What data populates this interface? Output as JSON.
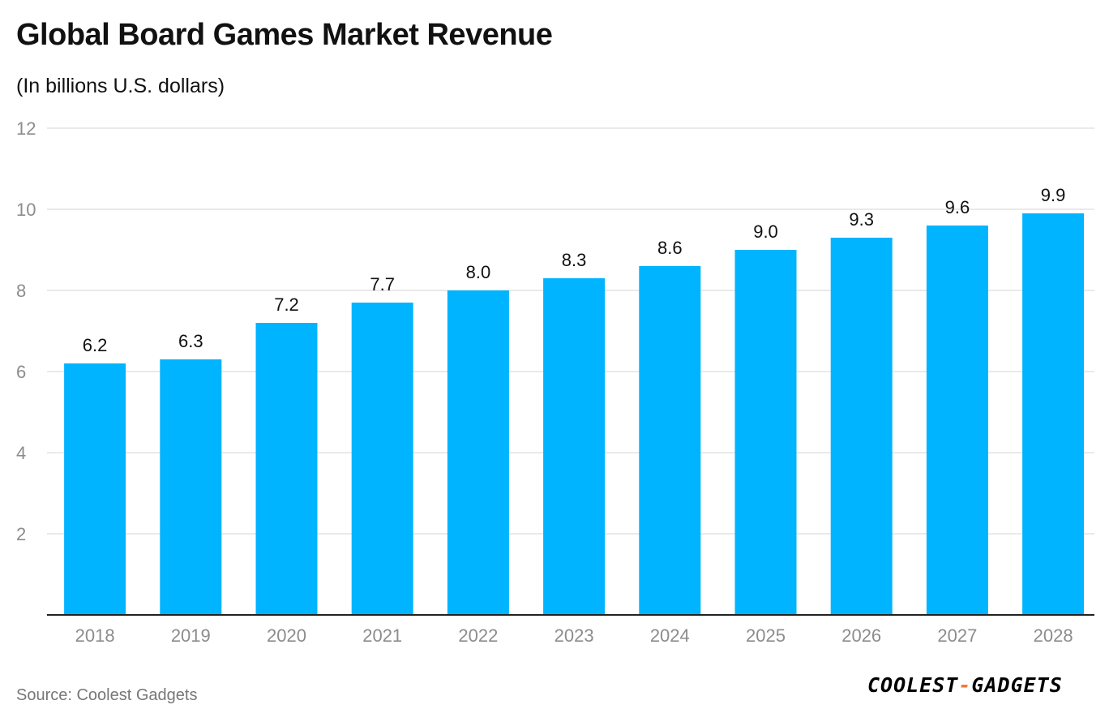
{
  "header": {
    "title": "Global Board Games Market Revenue",
    "subtitle": "(In billions U.S. dollars)"
  },
  "footer": {
    "source": "Source: Coolest Gadgets",
    "logo_left": "COOLEST",
    "logo_dash": "-",
    "logo_right": "GADGETS"
  },
  "colors": {
    "bar": "#00b4ff",
    "grid": "#e3e3e3",
    "axis": "#222222",
    "tick_label": "#8c8c8c",
    "data_label": "#111111",
    "logo_dash": "#f07a3a"
  },
  "chart_data": {
    "type": "bar",
    "title": "Global Board Games Market Revenue",
    "subtitle": "(In billions U.S. dollars)",
    "xlabel": "",
    "ylabel": "",
    "categories": [
      "2018",
      "2019",
      "2020",
      "2021",
      "2022",
      "2023",
      "2024",
      "2025",
      "2026",
      "2027",
      "2028"
    ],
    "values": [
      6.2,
      6.3,
      7.2,
      7.7,
      8.0,
      8.3,
      8.6,
      9.0,
      9.3,
      9.6,
      9.9
    ],
    "value_labels": [
      "6.2",
      "6.3",
      "7.2",
      "7.7",
      "8.0",
      "8.3",
      "8.6",
      "9.0",
      "9.3",
      "9.6",
      "9.9"
    ],
    "ylim": [
      0,
      12
    ],
    "yticks": [
      2,
      4,
      6,
      8,
      10,
      12
    ],
    "ytick_labels": [
      "2",
      "4",
      "6",
      "8",
      "10",
      "12"
    ],
    "grid": true,
    "legend": "none"
  }
}
